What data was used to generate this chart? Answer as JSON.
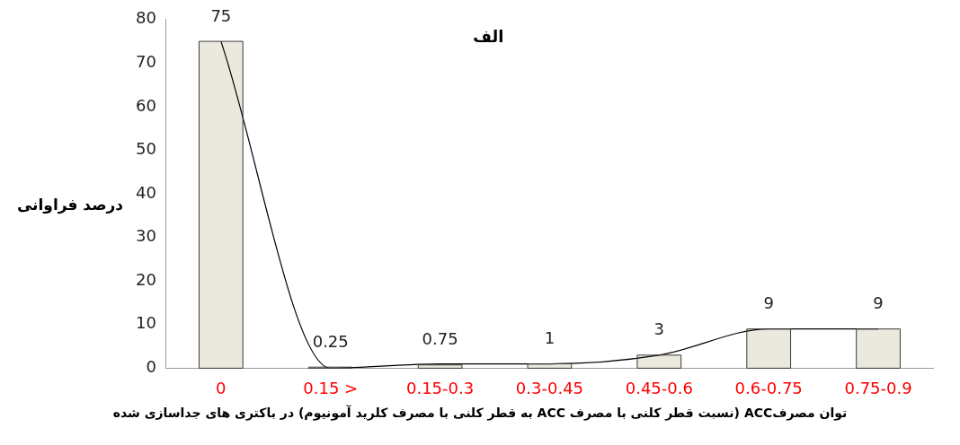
{
  "chart_data": {
    "type": "bar",
    "title": "الف",
    "xlabel": "توان مصرفACC  (نسبت قطر کلنی با مصرف ACC به قطر کلنی با مصرف کلرید آمونیوم) در باکتری های جداسازی شده",
    "ylabel": "درصد فراوانی",
    "categories": [
      "0",
      "0.15 >",
      "0.15-0.3",
      "0.3-0.45",
      "0.45-0.6",
      "0.6-0.75",
      "0.75-0.9"
    ],
    "series": [
      {
        "color": "#ebe9dd",
        "values": [
          75,
          0.25,
          0.75,
          1,
          3,
          9,
          9
        ],
        "data_labels": true
      },
      {
        "type": "line",
        "color": "#000000",
        "values": [
          75,
          0,
          1,
          1,
          3,
          9,
          9
        ]
      }
    ],
    "ylim": [
      0,
      80
    ],
    "yticks": [
      0,
      10,
      20,
      30,
      40,
      50,
      60,
      70,
      80
    ],
    "grid": false,
    "legend": false,
    "marker": "none"
  }
}
